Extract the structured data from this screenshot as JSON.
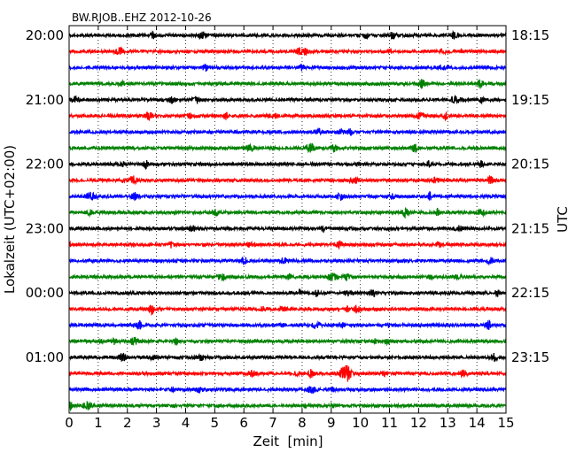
{
  "chart_data": {
    "type": "line",
    "title": "BW.RJOB..EHZ 2012-10-26",
    "xlabel": "Zeit  [min]",
    "ylabel_left": "Lokalzeit (UTC+02:00)",
    "ylabel_right": "UTC",
    "xlim": [
      0,
      15
    ],
    "x_ticks": [
      "0",
      "1",
      "2",
      "3",
      "4",
      "5",
      "6",
      "7",
      "8",
      "9",
      "10",
      "11",
      "12",
      "13",
      "14",
      "15"
    ],
    "grid": "vertical dotted lines at each minute",
    "trace_interval_minutes": 15,
    "trace_count": 24,
    "trace_colors": [
      "#000000",
      "#ff0000",
      "#0000ff",
      "#008000"
    ],
    "left_ticks": [
      {
        "trace": 0,
        "label": "20:00"
      },
      {
        "trace": 4,
        "label": "21:00"
      },
      {
        "trace": 8,
        "label": "22:00"
      },
      {
        "trace": 12,
        "label": "23:00"
      },
      {
        "trace": 16,
        "label": "00:00"
      },
      {
        "trace": 20,
        "label": "01:00"
      }
    ],
    "right_ticks": [
      {
        "trace": 0,
        "label": "18:15"
      },
      {
        "trace": 4,
        "label": "19:15"
      },
      {
        "trace": 8,
        "label": "20:15"
      },
      {
        "trace": 12,
        "label": "21:15"
      },
      {
        "trace": 16,
        "label": "22:15"
      },
      {
        "trace": 20,
        "label": "23:15"
      }
    ],
    "events": [
      {
        "trace": 21,
        "minute": 9.5,
        "amplitude": "large",
        "color": "red"
      }
    ]
  }
}
